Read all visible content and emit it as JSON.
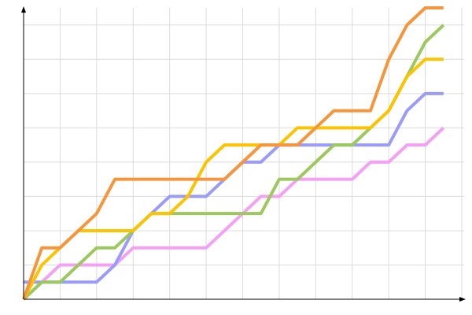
{
  "chart_data": {
    "type": "line",
    "x": [
      0,
      1,
      2,
      3,
      4,
      5,
      6,
      7,
      8,
      9,
      10,
      11,
      12,
      13,
      14,
      15,
      16,
      17,
      18,
      19,
      20,
      21,
      22,
      23
    ],
    "xlim": [
      0,
      24
    ],
    "ylim": [
      0,
      17
    ],
    "xticks": [
      0,
      2,
      4,
      6,
      8,
      10,
      12,
      14,
      16,
      18,
      20,
      22,
      24
    ],
    "yticks": [
      0,
      2,
      4,
      6,
      8,
      10,
      12,
      14,
      16
    ],
    "grid": true,
    "series": [
      {
        "color": "#f4a0f4",
        "values": [
          0,
          1,
          2,
          2,
          2,
          2,
          3,
          3,
          3,
          3,
          3,
          4,
          5,
          6,
          6,
          7,
          7,
          7,
          7,
          8,
          8,
          9,
          9,
          10
        ]
      },
      {
        "color": "#9a9cf8",
        "values": [
          1,
          1,
          1,
          1,
          1,
          2,
          4,
          5,
          6,
          6,
          6,
          7,
          8,
          8,
          9,
          9,
          9,
          9,
          9,
          9,
          9,
          11,
          12,
          12
        ]
      },
      {
        "color": "#9cc95e",
        "values": [
          0,
          1,
          1,
          2,
          3,
          3,
          4,
          5,
          5,
          5,
          5,
          5,
          5,
          5,
          7,
          7,
          8,
          9,
          9,
          10,
          11,
          13,
          15,
          16
        ]
      },
      {
        "color": "#fcc400",
        "values": [
          0,
          2,
          3,
          4,
          4,
          4,
          4,
          5,
          5,
          6,
          8,
          9,
          9,
          9,
          9,
          10,
          10,
          10,
          10,
          10,
          11,
          13,
          14,
          14
        ]
      },
      {
        "color": "#f6963c",
        "values": [
          0,
          3,
          3,
          4,
          5,
          7,
          7,
          7,
          7,
          7,
          7,
          7,
          8,
          9,
          9,
          9,
          10,
          11,
          11,
          11,
          14,
          16,
          17,
          17
        ]
      }
    ]
  }
}
